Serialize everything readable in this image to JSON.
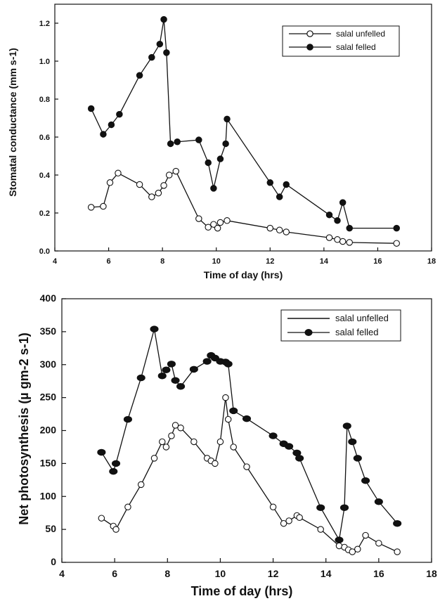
{
  "chart_data": [
    {
      "type": "line",
      "title": "",
      "xlabel": "Time of day (hrs)",
      "ylabel": "Stomatal conductance (mm s-1)",
      "xlim": [
        4,
        18
      ],
      "ylim": [
        0,
        1.4
      ],
      "x_ticks": [
        "4",
        "6",
        "8",
        "10",
        "12",
        "14",
        "16",
        "18"
      ],
      "y_ticks": [
        "0.0",
        "0.2",
        "0.4",
        "0.6",
        "0.8",
        "1.0",
        "1.2"
      ],
      "grid": false,
      "legend_position": "top-right",
      "series": [
        {
          "name": "salal unfelled",
          "marker": "open-circle",
          "color": "#111111",
          "points": [
            [
              5.35,
              0.23
            ],
            [
              5.8,
              0.235
            ],
            [
              6.05,
              0.36
            ],
            [
              6.35,
              0.41
            ],
            [
              7.15,
              0.35
            ],
            [
              7.6,
              0.285
            ],
            [
              7.85,
              0.305
            ],
            [
              8.05,
              0.345
            ],
            [
              8.25,
              0.4
            ],
            [
              8.5,
              0.42
            ],
            [
              9.35,
              0.17
            ],
            [
              9.7,
              0.125
            ],
            [
              9.9,
              0.14
            ],
            [
              10.05,
              0.12
            ],
            [
              10.15,
              0.15
            ],
            [
              10.4,
              0.16
            ],
            [
              12.0,
              0.12
            ],
            [
              12.35,
              0.11
            ],
            [
              12.6,
              0.1
            ],
            [
              14.2,
              0.07
            ],
            [
              14.5,
              0.06
            ],
            [
              14.7,
              0.05
            ],
            [
              14.95,
              0.045
            ],
            [
              16.7,
              0.04
            ]
          ]
        },
        {
          "name": "salal felled",
          "marker": "filled-circle",
          "color": "#111111",
          "points": [
            [
              5.35,
              0.75
            ],
            [
              5.8,
              0.615
            ],
            [
              6.1,
              0.665
            ],
            [
              6.4,
              0.72
            ],
            [
              7.15,
              0.925
            ],
            [
              7.6,
              1.02
            ],
            [
              7.9,
              1.09
            ],
            [
              8.05,
              1.22
            ],
            [
              8.15,
              1.045
            ],
            [
              8.3,
              0.565
            ],
            [
              8.55,
              0.575
            ],
            [
              9.35,
              0.585
            ],
            [
              9.7,
              0.465
            ],
            [
              9.9,
              0.33
            ],
            [
              10.15,
              0.485
            ],
            [
              10.35,
              0.565
            ],
            [
              10.4,
              0.695
            ],
            [
              12.0,
              0.36
            ],
            [
              12.35,
              0.285
            ],
            [
              12.6,
              0.35
            ],
            [
              14.2,
              0.19
            ],
            [
              14.5,
              0.16
            ],
            [
              14.7,
              0.255
            ],
            [
              14.95,
              0.12
            ],
            [
              16.7,
              0.12
            ]
          ]
        }
      ]
    },
    {
      "type": "line",
      "title": "",
      "xlabel": "Time of day (hrs)",
      "ylabel": "Net photosynthesis (µ gm-2 s-1)",
      "xlim": [
        4,
        18
      ],
      "ylim": [
        0,
        400
      ],
      "x_ticks": [
        "4",
        "6",
        "8",
        "10",
        "12",
        "14",
        "16",
        "18"
      ],
      "y_ticks": [
        "0",
        "50",
        "100",
        "150",
        "200",
        "250",
        "300",
        "350",
        "400"
      ],
      "grid": false,
      "legend_position": "top-right",
      "legend_entries": [
        {
          "label": "salal unfelled",
          "marker": "line"
        },
        {
          "label": "salal felled",
          "marker": "filled-circle"
        }
      ],
      "series": [
        {
          "name": "salal unfelled",
          "marker": "open-circle",
          "color": "#111111",
          "points": [
            [
              5.5,
              67
            ],
            [
              5.95,
              55
            ],
            [
              6.05,
              50
            ],
            [
              6.5,
              84
            ],
            [
              7.0,
              118
            ],
            [
              7.5,
              158
            ],
            [
              7.8,
              183
            ],
            [
              7.95,
              175
            ],
            [
              8.15,
              192
            ],
            [
              8.3,
              208
            ],
            [
              8.5,
              204
            ],
            [
              9.0,
              183
            ],
            [
              9.5,
              158
            ],
            [
              9.65,
              154
            ],
            [
              9.8,
              150
            ],
            [
              10.0,
              183
            ],
            [
              10.2,
              250
            ],
            [
              10.3,
              217
            ],
            [
              10.5,
              175
            ],
            [
              11.0,
              145
            ],
            [
              12.0,
              84
            ],
            [
              12.4,
              59
            ],
            [
              12.6,
              63
            ],
            [
              12.9,
              71
            ],
            [
              13.0,
              68
            ],
            [
              13.8,
              50
            ],
            [
              14.5,
              25
            ],
            [
              14.7,
              23
            ],
            [
              14.85,
              19
            ],
            [
              15.0,
              16
            ],
            [
              15.2,
              20
            ],
            [
              15.5,
              41
            ],
            [
              16.0,
              29
            ],
            [
              16.7,
              16
            ]
          ]
        },
        {
          "name": "salal felled",
          "marker": "filled-circle",
          "color": "#111111",
          "points": [
            [
              5.5,
              167
            ],
            [
              5.95,
              138
            ],
            [
              6.05,
              150
            ],
            [
              6.5,
              217
            ],
            [
              7.0,
              280
            ],
            [
              7.5,
              354
            ],
            [
              7.8,
              283
            ],
            [
              7.95,
              292
            ],
            [
              8.15,
              301
            ],
            [
              8.3,
              276
            ],
            [
              8.5,
              267
            ],
            [
              9.0,
              293
            ],
            [
              9.5,
              305
            ],
            [
              9.65,
              314
            ],
            [
              9.8,
              310
            ],
            [
              10.0,
              305
            ],
            [
              10.2,
              304
            ],
            [
              10.3,
              301
            ],
            [
              10.5,
              230
            ],
            [
              11.0,
              218
            ],
            [
              12.0,
              192
            ],
            [
              12.4,
              180
            ],
            [
              12.6,
              176
            ],
            [
              12.9,
              166
            ],
            [
              13.0,
              158
            ],
            [
              13.8,
              83
            ],
            [
              14.5,
              34
            ],
            [
              14.7,
              83
            ],
            [
              14.8,
              207
            ],
            [
              15.0,
              183
            ],
            [
              15.2,
              158
            ],
            [
              15.5,
              124
            ],
            [
              16.0,
              92
            ],
            [
              16.7,
              59
            ]
          ]
        }
      ]
    }
  ]
}
